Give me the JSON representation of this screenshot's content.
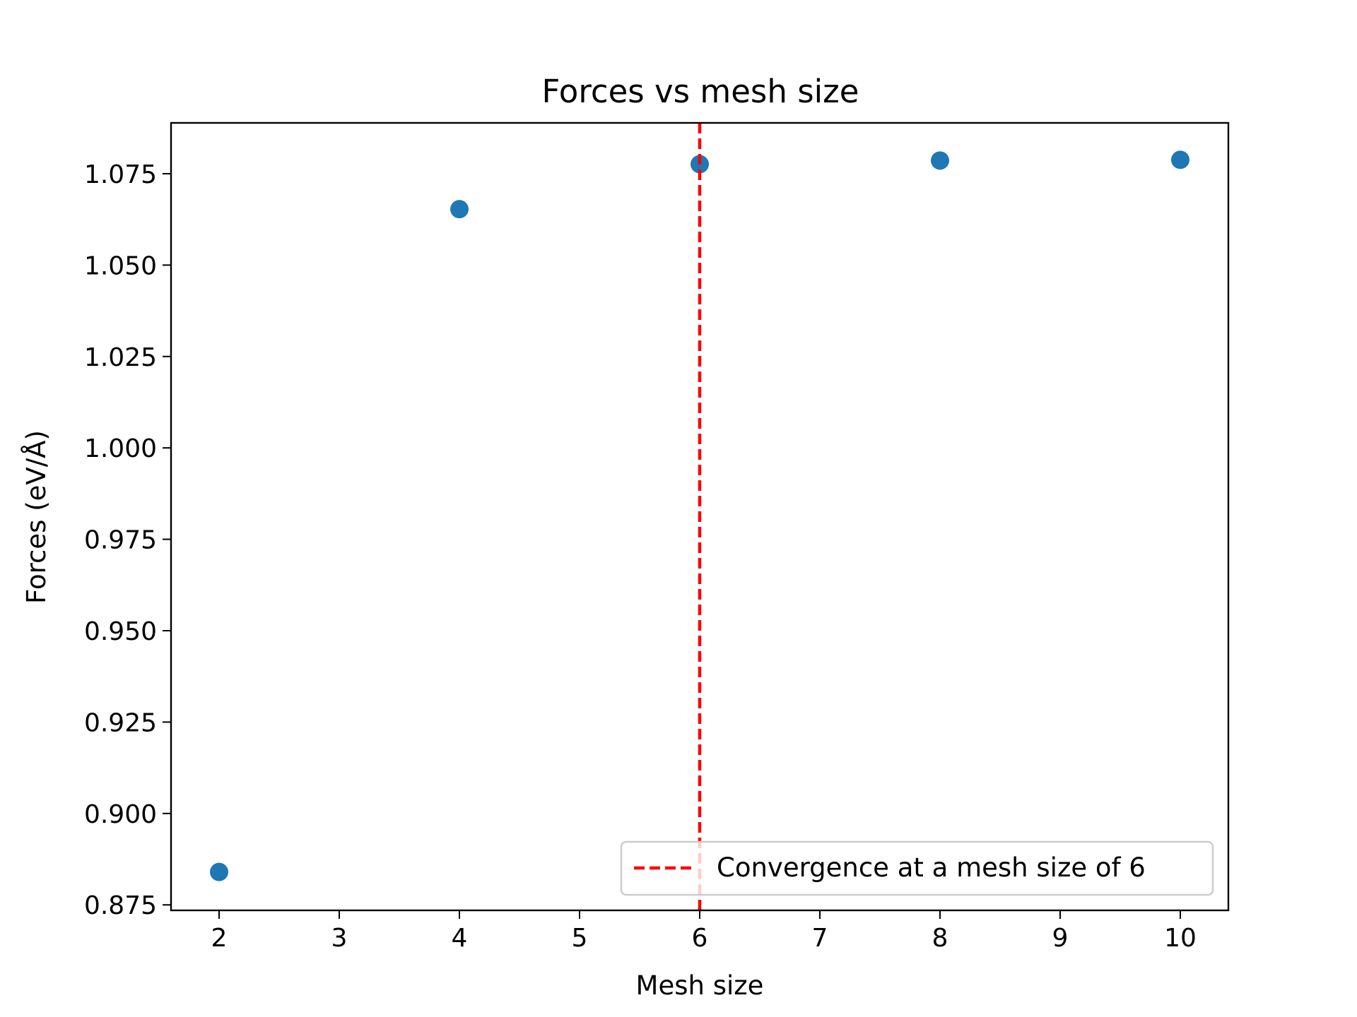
{
  "chart_data": {
    "type": "scatter",
    "title": "Forces vs mesh size",
    "xlabel": "Mesh size",
    "ylabel": "Forces (eV/Å)",
    "xlim": [
      1.6,
      10.4
    ],
    "ylim": [
      0.8735,
      1.0889
    ],
    "xticks": [
      2,
      3,
      4,
      5,
      6,
      7,
      8,
      9,
      10
    ],
    "xtick_labels": [
      "2",
      "3",
      "4",
      "5",
      "6",
      "7",
      "8",
      "9",
      "10"
    ],
    "yticks": [
      0.875,
      0.9,
      0.925,
      0.95,
      0.975,
      1.0,
      1.025,
      1.05,
      1.075
    ],
    "ytick_labels": [
      "0.875",
      "0.900",
      "0.925",
      "0.950",
      "0.975",
      "1.000",
      "1.025",
      "1.050",
      "1.075"
    ],
    "grid": false,
    "series": [
      {
        "color": "#1f77b4",
        "x": [
          2,
          4,
          6,
          8,
          10
        ],
        "y": [
          0.884,
          1.0653,
          1.0776,
          1.0786,
          1.0788
        ]
      }
    ],
    "reference_line": {
      "orientation": "vertical",
      "x": 6,
      "color": "#ff0000",
      "style": "dashed",
      "label": "Convergence at a mesh size of 6"
    },
    "legend": {
      "position": "lower-right",
      "entries": [
        "Convergence at a mesh size of 6"
      ]
    }
  }
}
